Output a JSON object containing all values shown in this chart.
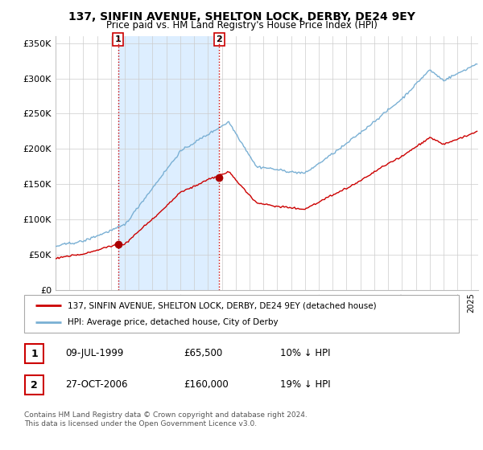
{
  "title": "137, SINFIN AVENUE, SHELTON LOCK, DERBY, DE24 9EY",
  "subtitle": "Price paid vs. HM Land Registry's House Price Index (HPI)",
  "ylim": [
    0,
    360000
  ],
  "yticks": [
    0,
    50000,
    100000,
    150000,
    200000,
    250000,
    300000,
    350000
  ],
  "ytick_labels": [
    "£0",
    "£50K",
    "£100K",
    "£150K",
    "£200K",
    "£250K",
    "£300K",
    "£350K"
  ],
  "xlim_start": 1995.0,
  "xlim_end": 2025.5,
  "sale1_date_num": 1999.52,
  "sale1_price": 65500,
  "sale1_label": "1",
  "sale2_date_num": 2006.82,
  "sale2_price": 160000,
  "sale2_label": "2",
  "marker_color": "#aa0000",
  "hpi_color": "#7ab0d4",
  "sale_color": "#cc0000",
  "vline_color": "#cc0000",
  "shade_color": "#ddeeff",
  "grid_color": "#cccccc",
  "background_color": "#ffffff",
  "legend_label_sale": "137, SINFIN AVENUE, SHELTON LOCK, DERBY, DE24 9EY (detached house)",
  "legend_label_hpi": "HPI: Average price, detached house, City of Derby",
  "table_row1": [
    "1",
    "09-JUL-1999",
    "£65,500",
    "10% ↓ HPI"
  ],
  "table_row2": [
    "2",
    "27-OCT-2006",
    "£160,000",
    "19% ↓ HPI"
  ],
  "footnote": "Contains HM Land Registry data © Crown copyright and database right 2024.\nThis data is licensed under the Open Government Licence v3.0.",
  "hpi_seed": 42,
  "sale_seed": 99
}
